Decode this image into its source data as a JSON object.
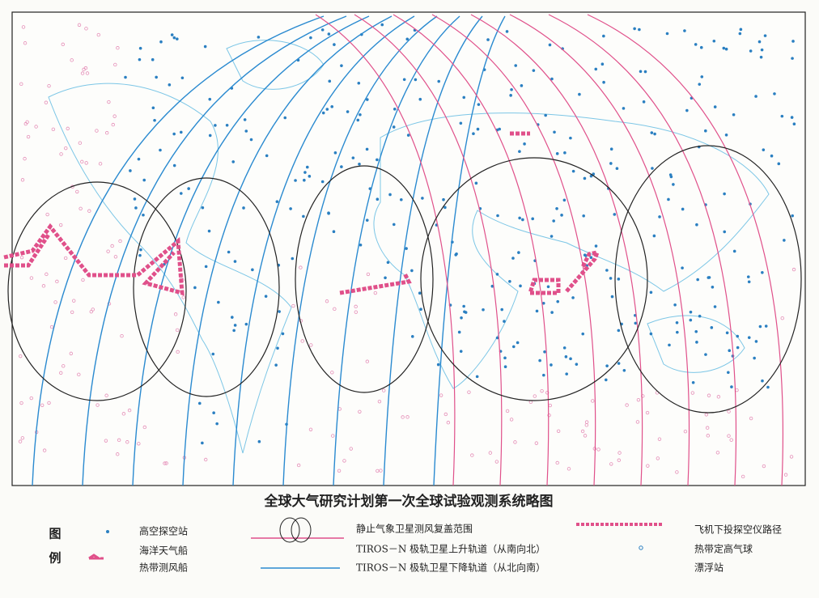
{
  "map": {
    "title": "全球大气研究计划第一次全球试验观测系统略图",
    "legend": {
      "heading": [
        "图",
        "例"
      ],
      "items": [
        {
          "label": "高空探空站"
        },
        {
          "label": "海洋天气船"
        },
        {
          "label": "热带测风船"
        },
        {
          "label": "静止气象卫星测风复盖范围"
        },
        {
          "label": "TIROS－N 极轨卫星上升轨道（从南向北）"
        },
        {
          "label": "TIROS－N 极轨卫星下降轨道（从北向南）"
        },
        {
          "label": "飞机下投探空仪路径"
        },
        {
          "label": "热带定高气球"
        },
        {
          "label": "漂浮站"
        }
      ]
    }
  }
}
